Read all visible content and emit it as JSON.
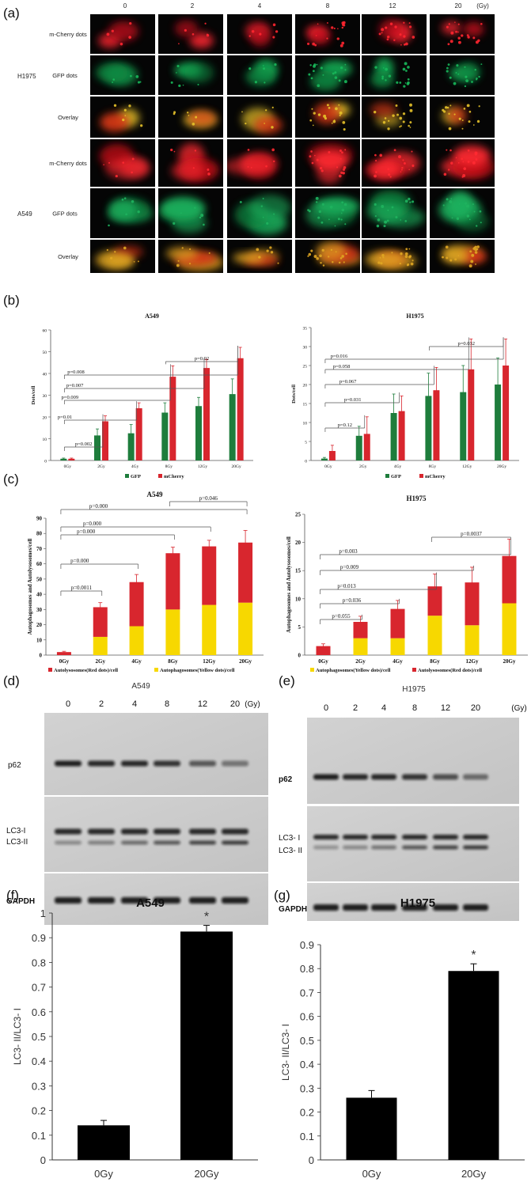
{
  "panel_labels": {
    "a": "(a)",
    "b": "(b)",
    "c": "(c)",
    "d": "(d)",
    "e": "(e)",
    "f": "(f)",
    "g": "(g)"
  },
  "panel_a": {
    "doses": [
      "0",
      "2",
      "4",
      "8",
      "12",
      "20"
    ],
    "unit": "(Gy)",
    "cell_lines": [
      "H1975",
      "A549"
    ],
    "row_labels": [
      "m-Cherry dots",
      "GFP  dots",
      "Overlay",
      "m-Cherry dots",
      "GFP  dots",
      "Overlay"
    ]
  },
  "colors": {
    "gfp": "#1e7d3c",
    "mcherry": "#d8262e",
    "yellow": "#f7d800",
    "red": "#d8262e",
    "black": "#000000"
  },
  "chart_data": [
    {
      "panel": "b-left",
      "type": "bar",
      "title": "A549",
      "ylabel": "Dots/cell",
      "ylim": [
        0,
        60
      ],
      "yticks": [
        "0",
        "10",
        "20",
        "30",
        "40",
        "50",
        "60"
      ],
      "categories": [
        "0Gy",
        "2Gy",
        "4Gy",
        "8Gy",
        "12Gy",
        "20Gy"
      ],
      "series": [
        {
          "name": "GFP",
          "values": [
            0.8,
            11.5,
            12.5,
            22,
            25,
            30.5
          ],
          "errors": [
            0.3,
            3,
            4,
            4.5,
            4,
            7
          ]
        },
        {
          "name": "mCherry",
          "values": [
            0.8,
            18,
            24,
            38.5,
            42.5,
            47
          ],
          "errors": [
            0.3,
            2.5,
            2.5,
            5,
            4,
            5
          ]
        }
      ],
      "pvalues": [
        {
          "text": "p=0.002",
          "from": 0,
          "to": 1
        },
        {
          "text": "p=0.01",
          "from": 0,
          "to": 2
        },
        {
          "text": "p=0.009",
          "from": 0,
          "to": 3
        },
        {
          "text": "p=0.007",
          "from": 0,
          "to": 4
        },
        {
          "text": "p=0.008",
          "from": 0,
          "to": 5
        },
        {
          "text": "p=0.02",
          "from": 3,
          "to": 5
        }
      ]
    },
    {
      "panel": "b-right",
      "type": "bar",
      "title": "H1975",
      "ylabel": "Dots/cell",
      "ylim": [
        0,
        35
      ],
      "yticks": [
        "0",
        "5",
        "10",
        "15",
        "20",
        "25",
        "30",
        "35"
      ],
      "categories": [
        "0Gy",
        "2Gy",
        "4Gy",
        "8Gy",
        "12Gy",
        "20Gy"
      ],
      "series": [
        {
          "name": "GFP",
          "values": [
            0.5,
            6.5,
            12.5,
            17,
            18,
            20
          ],
          "errors": [
            0.3,
            2.5,
            5,
            6,
            7,
            7
          ]
        },
        {
          "name": "mCherry",
          "values": [
            2.5,
            7,
            13,
            18.5,
            24,
            25
          ],
          "errors": [
            1.5,
            4.5,
            4,
            6,
            8,
            7
          ]
        }
      ],
      "pvalues": [
        {
          "text": "p=0.12",
          "from": 0,
          "to": 1
        },
        {
          "text": "p=0.031",
          "from": 0,
          "to": 2
        },
        {
          "text": "p=0.067",
          "from": 0,
          "to": 3
        },
        {
          "text": "p=0.058",
          "from": 0,
          "to": 4
        },
        {
          "text": "p=0.016",
          "from": 0,
          "to": 5
        },
        {
          "text": "p=0.032",
          "from": 3,
          "to": 5
        }
      ]
    },
    {
      "panel": "c-left",
      "type": "stacked-bar",
      "title": "A549",
      "ylabel": "Autophagosomes and Autolysosomes/cell",
      "ylim": [
        0,
        90
      ],
      "yticks": [
        "0",
        "10",
        "20",
        "30",
        "40",
        "50",
        "60",
        "70",
        "80",
        "90"
      ],
      "categories": [
        "0Gy",
        "2Gy",
        "4Gy",
        "8Gy",
        "12Gy",
        "20Gy"
      ],
      "series": [
        {
          "name": "Autophagosomes(Yellow dots)/cell",
          "values": [
            0,
            12,
            19,
            30,
            33,
            34.5
          ]
        },
        {
          "name": "Autolysosomes(Red dots)/cell",
          "values": [
            2,
            19.5,
            29,
            37,
            38.5,
            39.5
          ]
        }
      ],
      "errors": [
        0.5,
        3,
        5,
        4,
        4,
        8
      ],
      "legend_order": [
        "Autolysosomes(Red dots)/cell",
        "Autophagosomes(Yellow dots)/cell"
      ],
      "pvalues": [
        {
          "text": "p=0.0011",
          "from": 0,
          "to": 1
        },
        {
          "text": "p=0.000",
          "from": 0,
          "to": 2
        },
        {
          "text": "p=0.000",
          "from": 0,
          "to": 3
        },
        {
          "text": "p=0.000",
          "from": 0,
          "to": 4
        },
        {
          "text": "p=0.000",
          "from": 0,
          "to": 5
        },
        {
          "text": "p=0.046",
          "from": 3,
          "to": 5
        }
      ]
    },
    {
      "panel": "c-right",
      "type": "stacked-bar",
      "title": "H1975",
      "ylabel": "Autophagosomes and Autolysosomes/cell",
      "ylim": [
        0,
        25
      ],
      "yticks": [
        "0",
        "5",
        "10",
        "15",
        "20",
        "25"
      ],
      "categories": [
        "0Gy",
        "2Gy",
        "4Gy",
        "8Gy",
        "12Gy",
        "20Gy"
      ],
      "series": [
        {
          "name": "Autophagosomes(Yellow dots)/cell",
          "values": [
            0,
            3,
            3,
            7,
            5.3,
            9.2
          ]
        },
        {
          "name": "Autolysosomes(Red dots)/cell",
          "values": [
            1.6,
            2.9,
            5.2,
            5.2,
            7.6,
            8.4
          ]
        }
      ],
      "errors": [
        0.4,
        1,
        1.5,
        2.2,
        2.7,
        3
      ],
      "legend_order": [
        "Autophagosomes(Yellow dots)/cell",
        "Autolysosomes(Red dots)/cell"
      ],
      "pvalues": [
        {
          "text": "p=0.055",
          "from": 0,
          "to": 1
        },
        {
          "text": "p=0.036",
          "from": 0,
          "to": 2
        },
        {
          "text": "p=0.013",
          "from": 0,
          "to": 3
        },
        {
          "text": "p=0.009",
          "from": 0,
          "to": 4
        },
        {
          "text": "p=0.003",
          "from": 0,
          "to": 5
        },
        {
          "text": "p=0.0037",
          "from": 3,
          "to": 5
        }
      ]
    },
    {
      "panel": "f",
      "type": "bar",
      "title": "A549",
      "ylabel": "LC3- II/LC3- I",
      "ylim": [
        0,
        1
      ],
      "yticks": [
        "0",
        "0.1",
        "0.2",
        "0.3",
        "0.4",
        "0.5",
        "0.6",
        "0.7",
        "0.8",
        "0.9",
        "1"
      ],
      "categories": [
        "0Gy",
        "20Gy"
      ],
      "values": [
        0.14,
        0.925
      ],
      "errors": [
        0.02,
        0.025
      ],
      "annotation": "*"
    },
    {
      "panel": "g",
      "type": "bar",
      "title": "H1975",
      "ylabel": "LC3- II/LC3- I",
      "ylim": [
        0,
        0.9
      ],
      "yticks": [
        "0",
        "0.1",
        "0.2",
        "0.3",
        "0.4",
        "0.5",
        "0.6",
        "0.7",
        "0.8",
        "0.9"
      ],
      "categories": [
        "0Gy",
        "20Gy"
      ],
      "values": [
        0.26,
        0.79
      ],
      "errors": [
        0.03,
        0.03
      ],
      "annotation": "*"
    }
  ],
  "panel_d": {
    "title": "A549",
    "doses": [
      "0",
      "2",
      "4",
      "8",
      "12",
      "20"
    ],
    "unit": "(Gy)",
    "bands": [
      "p62",
      "LC3-I",
      "LC3-II",
      "GAPDH"
    ]
  },
  "panel_e": {
    "title": "H1975",
    "doses": [
      "0",
      "2",
      "4",
      "8",
      "12",
      "20"
    ],
    "unit": "(Gy)",
    "bands": [
      "p62",
      "LC3- I",
      "LC3- II",
      "GAPDH"
    ]
  }
}
